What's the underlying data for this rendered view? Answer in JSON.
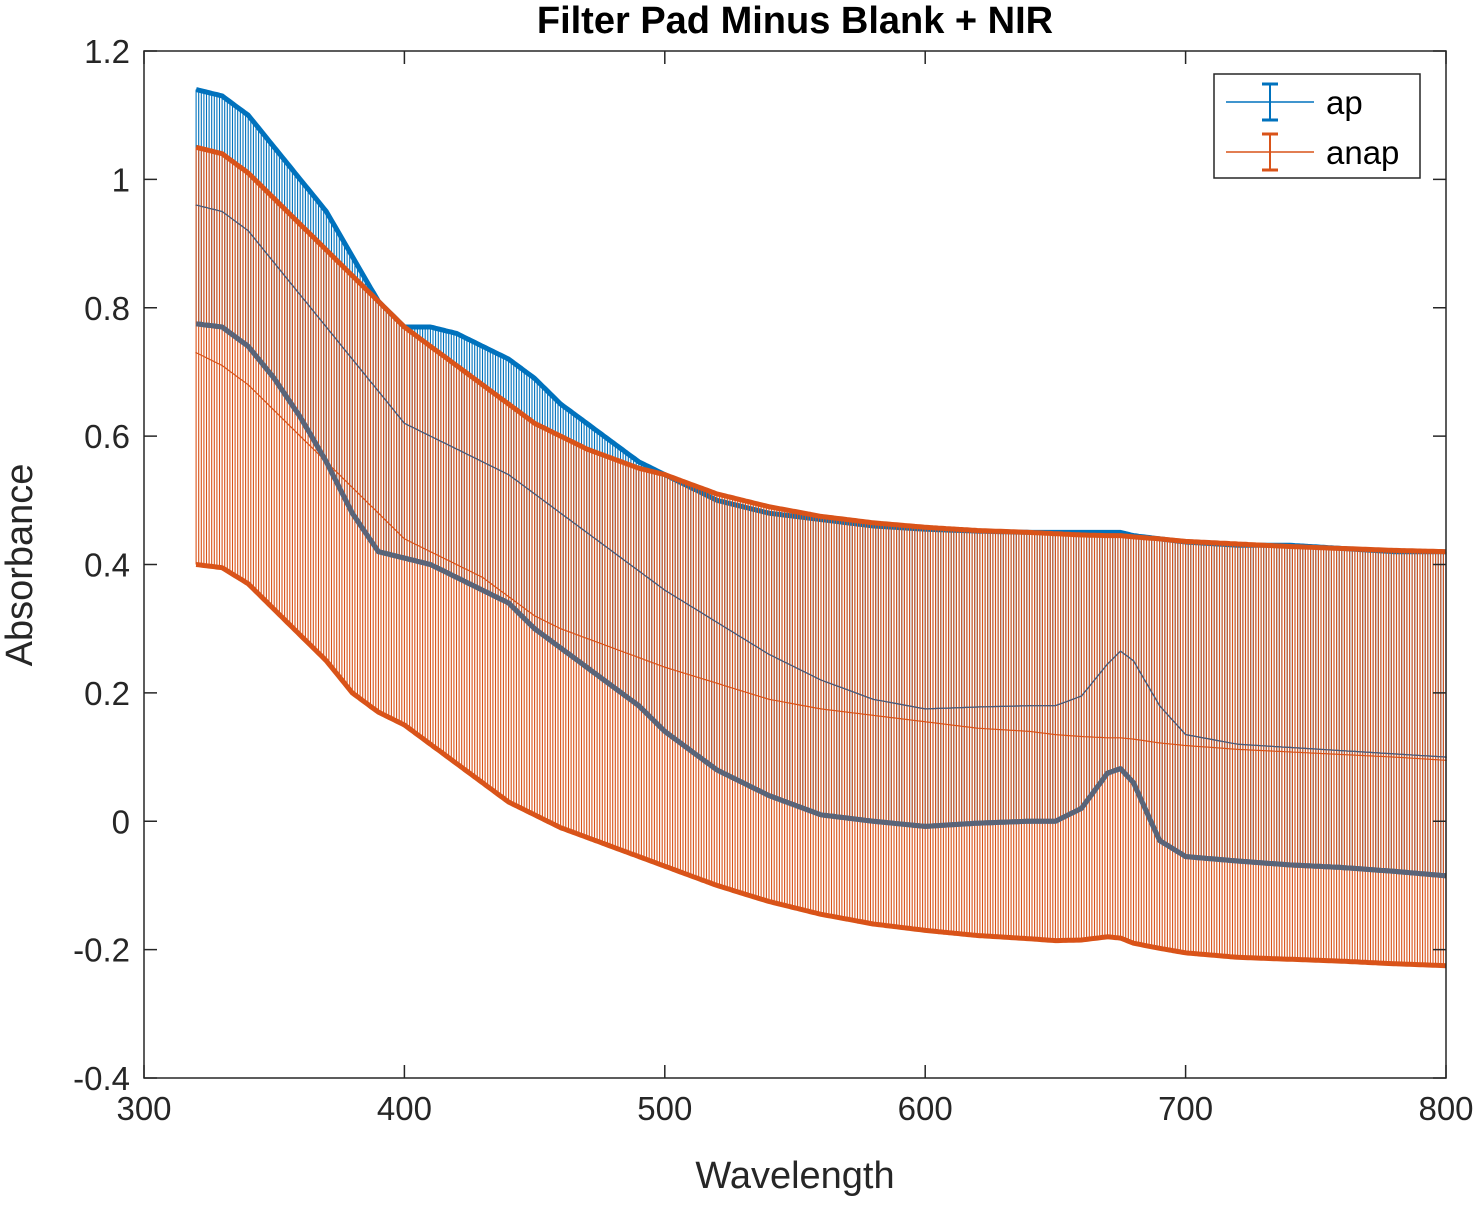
{
  "chart_data": {
    "type": "line",
    "subtype": "errorbar",
    "title": "Filter Pad Minus Blank + NIR",
    "xlabel": "Wavelength",
    "ylabel": "Absorbance",
    "xlim": [
      300,
      800
    ],
    "ylim": [
      -0.4,
      1.2
    ],
    "x_ticks": [
      "300",
      "400",
      "500",
      "600",
      "700",
      "800"
    ],
    "y_ticks": [
      "-0.4",
      "-0.2",
      "0",
      "0.2",
      "0.4",
      "0.6",
      "0.8",
      "1",
      "1.2"
    ],
    "grid": false,
    "legend_position": "top-right",
    "x": [
      320,
      330,
      340,
      350,
      360,
      370,
      380,
      390,
      400,
      410,
      420,
      430,
      440,
      450,
      460,
      470,
      480,
      490,
      500,
      520,
      540,
      560,
      580,
      600,
      620,
      640,
      650,
      660,
      670,
      675,
      680,
      690,
      700,
      720,
      740,
      760,
      780,
      800
    ],
    "series": [
      {
        "name": "ap",
        "color": "#0072BD",
        "mean": [
          0.96,
          0.95,
          0.92,
          0.87,
          0.82,
          0.77,
          0.72,
          0.67,
          0.62,
          0.6,
          0.58,
          0.56,
          0.54,
          0.51,
          0.48,
          0.45,
          0.42,
          0.39,
          0.36,
          0.31,
          0.26,
          0.22,
          0.19,
          0.175,
          0.178,
          0.18,
          0.18,
          0.195,
          0.245,
          0.265,
          0.25,
          0.18,
          0.135,
          0.12,
          0.115,
          0.11,
          0.105,
          0.1
        ],
        "upper": [
          1.14,
          1.13,
          1.1,
          1.05,
          1.0,
          0.95,
          0.88,
          0.81,
          0.77,
          0.77,
          0.76,
          0.74,
          0.72,
          0.69,
          0.65,
          0.62,
          0.59,
          0.56,
          0.54,
          0.5,
          0.48,
          0.47,
          0.46,
          0.455,
          0.452,
          0.45,
          0.45,
          0.45,
          0.45,
          0.45,
          0.445,
          0.44,
          0.435,
          0.43,
          0.43,
          0.425,
          0.42,
          0.42
        ],
        "lower": [
          0.775,
          0.77,
          0.74,
          0.69,
          0.63,
          0.56,
          0.48,
          0.42,
          0.41,
          0.4,
          0.38,
          0.36,
          0.34,
          0.3,
          0.27,
          0.24,
          0.21,
          0.18,
          0.14,
          0.08,
          0.04,
          0.01,
          0.0,
          -0.008,
          -0.003,
          0.0,
          0.0,
          0.02,
          0.075,
          0.082,
          0.06,
          -0.03,
          -0.055,
          -0.062,
          -0.068,
          -0.072,
          -0.078,
          -0.085
        ]
      },
      {
        "name": "anap",
        "color": "#D95319",
        "mean": [
          0.73,
          0.71,
          0.68,
          0.64,
          0.6,
          0.56,
          0.52,
          0.48,
          0.44,
          0.42,
          0.4,
          0.38,
          0.35,
          0.32,
          0.3,
          0.285,
          0.27,
          0.255,
          0.24,
          0.215,
          0.19,
          0.175,
          0.165,
          0.155,
          0.145,
          0.14,
          0.135,
          0.132,
          0.13,
          0.13,
          0.128,
          0.122,
          0.118,
          0.112,
          0.108,
          0.104,
          0.1,
          0.095
        ],
        "upper": [
          1.05,
          1.04,
          1.01,
          0.97,
          0.93,
          0.89,
          0.85,
          0.81,
          0.77,
          0.74,
          0.71,
          0.68,
          0.65,
          0.62,
          0.6,
          0.58,
          0.565,
          0.55,
          0.54,
          0.51,
          0.49,
          0.475,
          0.465,
          0.458,
          0.453,
          0.45,
          0.448,
          0.446,
          0.445,
          0.445,
          0.443,
          0.44,
          0.436,
          0.432,
          0.428,
          0.425,
          0.422,
          0.42
        ],
        "lower": [
          0.4,
          0.395,
          0.37,
          0.33,
          0.29,
          0.25,
          0.2,
          0.17,
          0.15,
          0.12,
          0.09,
          0.06,
          0.03,
          0.01,
          -0.01,
          -0.025,
          -0.04,
          -0.055,
          -0.07,
          -0.1,
          -0.125,
          -0.145,
          -0.16,
          -0.17,
          -0.178,
          -0.183,
          -0.186,
          -0.185,
          -0.18,
          -0.182,
          -0.19,
          -0.198,
          -0.205,
          -0.212,
          -0.215,
          -0.218,
          -0.222,
          -0.225
        ]
      }
    ]
  }
}
